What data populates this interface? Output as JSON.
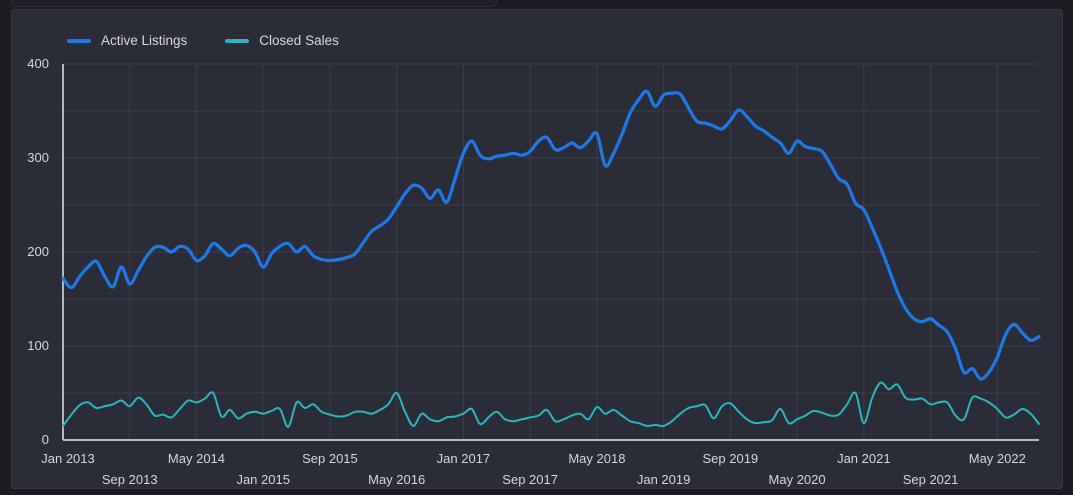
{
  "panel": {
    "legend": [
      {
        "label": "Active Listings",
        "color": "#1f78e8"
      },
      {
        "label": "Closed Sales",
        "color": "#2bb5c4"
      }
    ]
  },
  "colors": {
    "page_background": "#1b1c21",
    "panel_background": "#2a2d37",
    "gridline": "#3a3d48",
    "axis_line": "#e2e5e9",
    "tick_text": "#d5d7da",
    "active_listings_line": "#1f78e8",
    "closed_sales_line": "#2bb5c4"
  },
  "chart_data": {
    "type": "line",
    "title": "",
    "xlabel": "",
    "ylabel": "",
    "x_start": "Jan 2013",
    "x_end": "Oct 2022",
    "x_interval": "monthly",
    "ylim": [
      0,
      400
    ],
    "y_ticks": [
      0,
      100,
      200,
      300,
      400
    ],
    "grid": {
      "h_step_value": 50,
      "v_step_months": 8,
      "grid_on": true
    },
    "legend_position": "top-left",
    "x_ticks_row1": [
      {
        "month_index": 0,
        "label": "Jan 2013"
      },
      {
        "month_index": 16,
        "label": "May 2014"
      },
      {
        "month_index": 32,
        "label": "Sep 2015"
      },
      {
        "month_index": 48,
        "label": "Jan 2017"
      },
      {
        "month_index": 64,
        "label": "May 2018"
      },
      {
        "month_index": 80,
        "label": "Sep 2019"
      },
      {
        "month_index": 96,
        "label": "Jan 2021"
      },
      {
        "month_index": 112,
        "label": "May 2022"
      }
    ],
    "x_ticks_row2": [
      {
        "month_index": 8,
        "label": "Sep 2013"
      },
      {
        "month_index": 24,
        "label": "Jan 2015"
      },
      {
        "month_index": 40,
        "label": "May 2016"
      },
      {
        "month_index": 56,
        "label": "Sep 2017"
      },
      {
        "month_index": 72,
        "label": "Jan 2019"
      },
      {
        "month_index": 88,
        "label": "May 2020"
      },
      {
        "month_index": 104,
        "label": "Sep 2021"
      }
    ],
    "series": [
      {
        "name": "Active Listings",
        "color": "#1f78e8",
        "line_width": 3.2,
        "values": [
          172,
          162,
          174,
          184,
          190,
          174,
          163,
          184,
          166,
          180,
          195,
          205,
          205,
          200,
          206,
          203,
          191,
          196,
          209,
          203,
          196,
          204,
          207,
          200,
          184,
          198,
          206,
          209,
          200,
          206,
          196,
          192,
          191,
          192,
          194,
          198,
          210,
          222,
          228,
          235,
          248,
          262,
          271,
          268,
          257,
          266,
          253,
          278,
          305,
          318,
          303,
          299,
          302,
          303,
          305,
          303,
          307,
          318,
          322,
          309,
          311,
          316,
          311,
          318,
          326,
          292,
          305,
          325,
          348,
          362,
          371,
          355,
          367,
          369,
          368,
          353,
          339,
          337,
          334,
          331,
          340,
          351,
          344,
          334,
          329,
          322,
          316,
          305,
          318,
          312,
          310,
          307,
          293,
          278,
          272,
          252,
          245,
          226,
          205,
          182,
          158,
          140,
          129,
          126,
          129,
          122,
          115,
          97,
          72,
          76,
          65,
          72,
          88,
          112,
          123,
          114,
          106,
          110
        ]
      },
      {
        "name": "Closed Sales",
        "color": "#2bb5c4",
        "line_width": 2,
        "values": [
          15,
          27,
          37,
          40,
          34,
          36,
          38,
          42,
          36,
          45,
          38,
          26,
          27,
          24,
          33,
          42,
          40,
          44,
          50,
          25,
          32,
          23,
          28,
          30,
          28,
          31,
          33,
          14,
          40,
          34,
          38,
          30,
          27,
          25,
          26,
          30,
          30,
          28,
          32,
          38,
          50,
          30,
          15,
          28,
          22,
          20,
          24,
          25,
          28,
          33,
          17,
          24,
          30,
          22,
          20,
          22,
          24,
          26,
          32,
          20,
          22,
          26,
          28,
          22,
          35,
          28,
          32,
          26,
          20,
          18,
          15,
          16,
          15,
          20,
          28,
          34,
          36,
          37,
          23,
          36,
          39,
          30,
          22,
          18,
          19,
          21,
          33,
          18,
          22,
          26,
          31,
          29,
          26,
          27,
          38,
          50,
          18,
          45,
          61,
          54,
          59,
          45,
          43,
          44,
          38,
          40,
          40,
          26,
          22,
          45,
          44,
          40,
          33,
          24,
          27,
          33,
          28,
          17
        ]
      }
    ]
  }
}
